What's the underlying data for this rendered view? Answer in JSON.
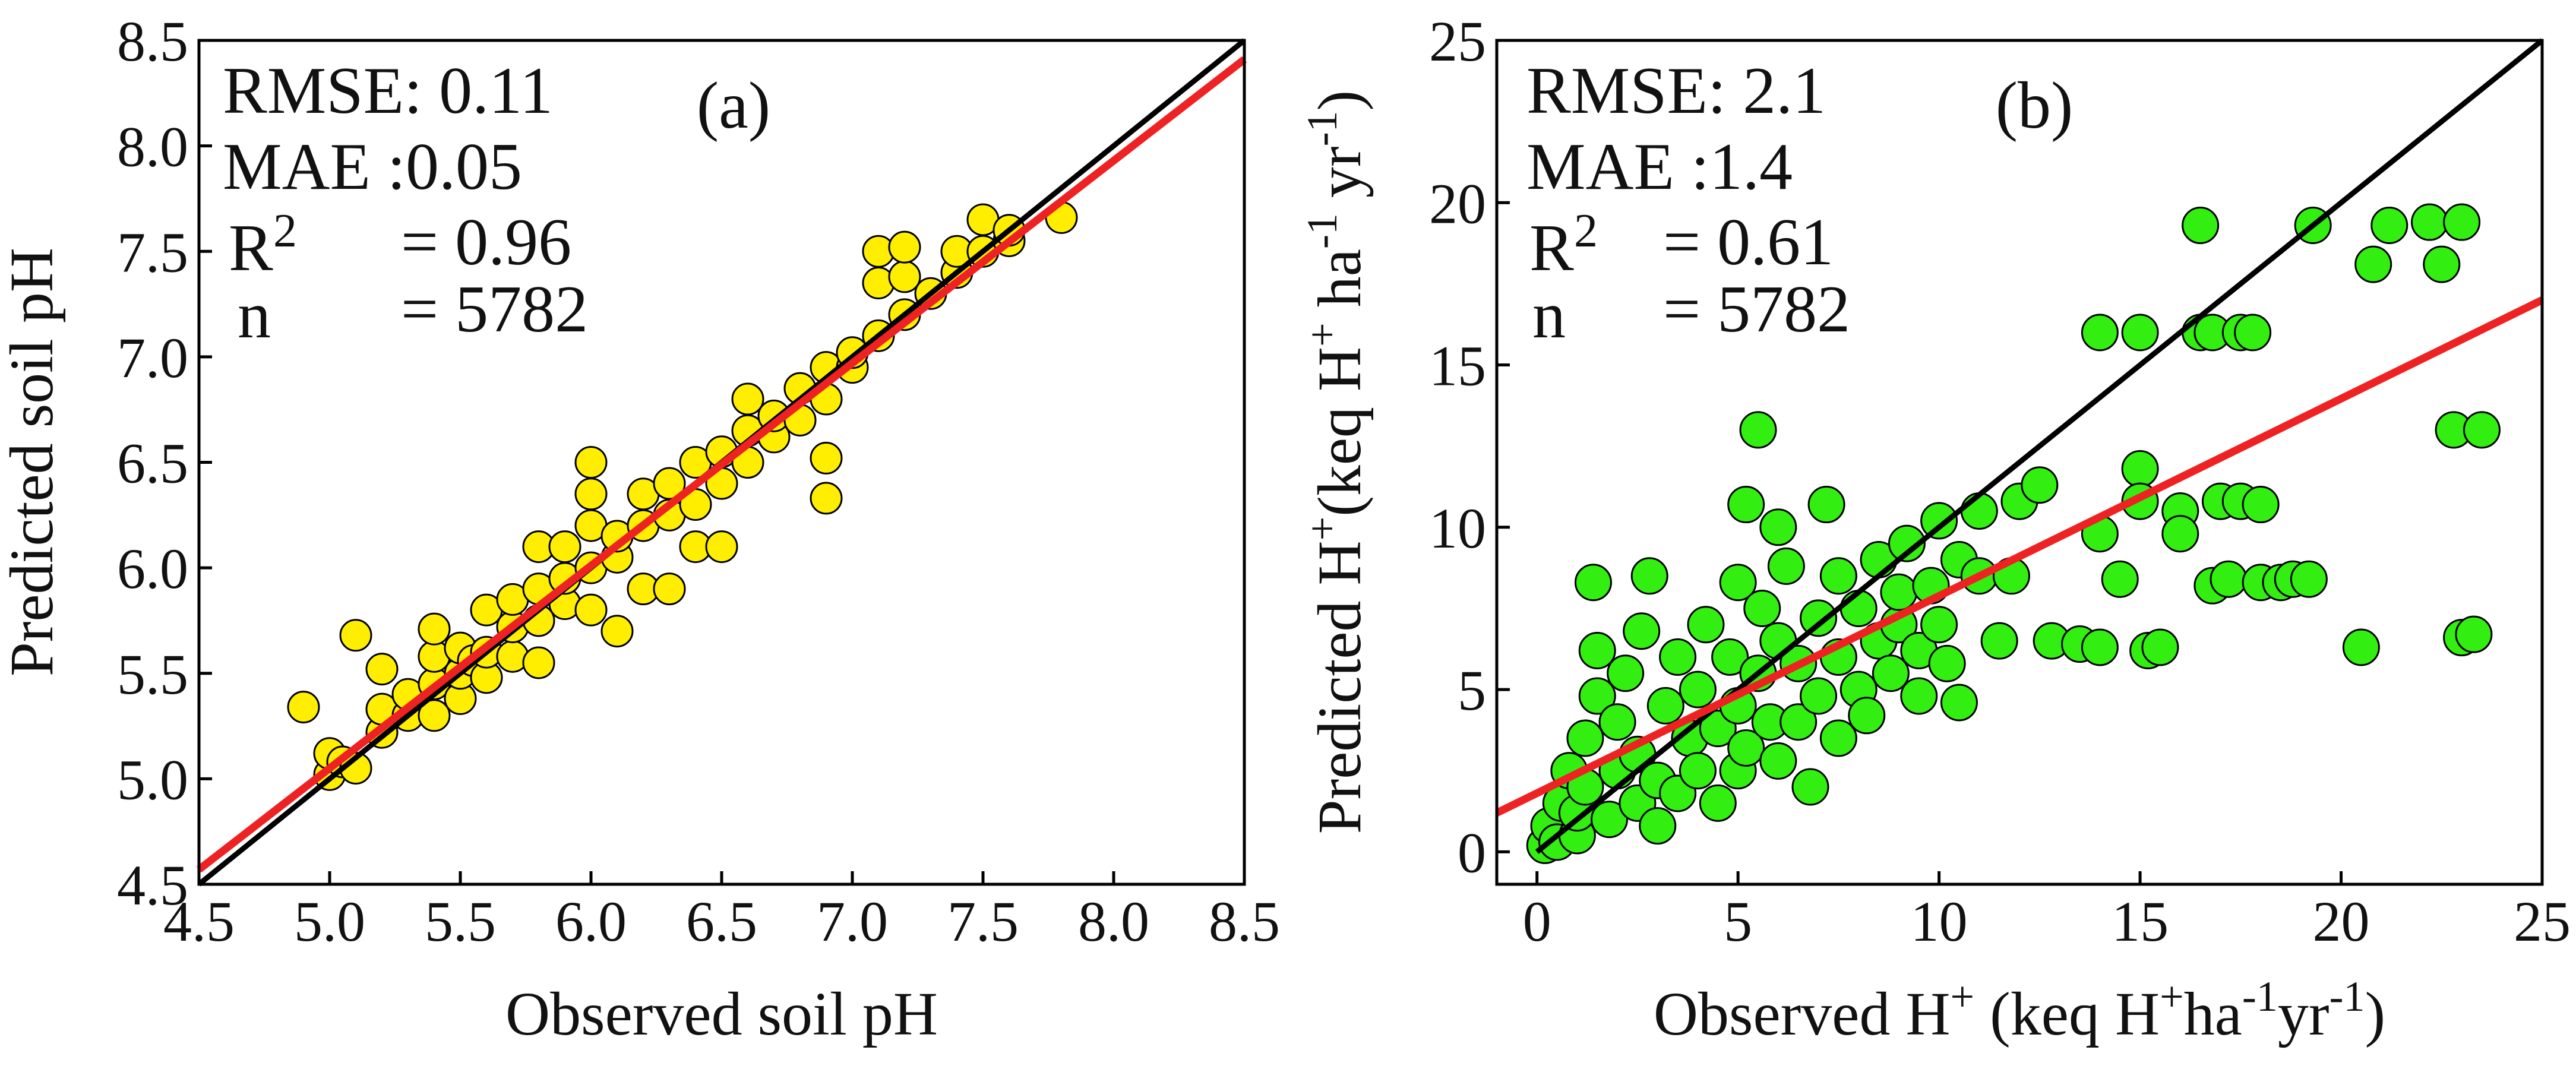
{
  "chart_data": [
    {
      "type": "scatter",
      "panel_label": "(a)",
      "xlabel": "Observed soil pH",
      "ylabel": "Predicted soil pH",
      "xlim": [
        4.5,
        8.5
      ],
      "ylim": [
        4.5,
        8.5
      ],
      "xticks": [
        "4.5",
        "5.0",
        "5.5",
        "6.0",
        "6.5",
        "7.0",
        "7.5",
        "8.0",
        "8.5"
      ],
      "yticks": [
        "4.5",
        "5.0",
        "5.5",
        "6.0",
        "6.5",
        "7.0",
        "7.5",
        "8.0",
        "8.5"
      ],
      "point_color": "#ffee00",
      "stats": {
        "rmse": "RMSE: 0.11",
        "mae": "MAE  :0.05",
        "r2_label": "R",
        "r2_sup": "2",
        "r2_value": "= 0.96",
        "n_label": "n",
        "n_value": "= 5782"
      },
      "identity_line": {
        "color": "#000000",
        "from": [
          4.5,
          4.5
        ],
        "to": [
          8.5,
          8.5
        ]
      },
      "fit_line": {
        "color": "#ee2222",
        "from": [
          4.5,
          4.57
        ],
        "to": [
          8.5,
          8.41
        ]
      },
      "points": [
        [
          4.9,
          5.34
        ],
        [
          5.0,
          5.02
        ],
        [
          5.0,
          5.12
        ],
        [
          5.05,
          5.08
        ],
        [
          5.1,
          5.05
        ],
        [
          5.1,
          5.68
        ],
        [
          5.2,
          5.22
        ],
        [
          5.2,
          5.33
        ],
        [
          5.2,
          5.52
        ],
        [
          5.3,
          5.3
        ],
        [
          5.3,
          5.4
        ],
        [
          5.4,
          5.3
        ],
        [
          5.4,
          5.45
        ],
        [
          5.4,
          5.58
        ],
        [
          5.4,
          5.71
        ],
        [
          5.5,
          5.38
        ],
        [
          5.5,
          5.5
        ],
        [
          5.5,
          5.62
        ],
        [
          5.55,
          5.56
        ],
        [
          5.6,
          5.48
        ],
        [
          5.6,
          5.6
        ],
        [
          5.6,
          5.8
        ],
        [
          5.7,
          5.58
        ],
        [
          5.7,
          5.72
        ],
        [
          5.7,
          5.85
        ],
        [
          5.8,
          5.55
        ],
        [
          5.8,
          5.75
        ],
        [
          5.8,
          5.9
        ],
        [
          5.8,
          6.1
        ],
        [
          5.9,
          5.83
        ],
        [
          5.9,
          5.95
        ],
        [
          5.9,
          6.1
        ],
        [
          6.0,
          5.8
        ],
        [
          6.0,
          6.0
        ],
        [
          6.0,
          6.2
        ],
        [
          6.0,
          6.35
        ],
        [
          6.0,
          6.5
        ],
        [
          6.1,
          5.7
        ],
        [
          6.1,
          6.05
        ],
        [
          6.1,
          6.15
        ],
        [
          6.2,
          5.9
        ],
        [
          6.2,
          6.2
        ],
        [
          6.2,
          6.35
        ],
        [
          6.3,
          5.9
        ],
        [
          6.3,
          6.25
        ],
        [
          6.3,
          6.4
        ],
        [
          6.4,
          6.1
        ],
        [
          6.4,
          6.3
        ],
        [
          6.4,
          6.5
        ],
        [
          6.5,
          6.1
        ],
        [
          6.5,
          6.4
        ],
        [
          6.5,
          6.55
        ],
        [
          6.6,
          6.5
        ],
        [
          6.6,
          6.65
        ],
        [
          6.6,
          6.8
        ],
        [
          6.7,
          6.62
        ],
        [
          6.7,
          6.72
        ],
        [
          6.8,
          6.7
        ],
        [
          6.8,
          6.85
        ],
        [
          6.9,
          6.33
        ],
        [
          6.9,
          6.52
        ],
        [
          6.9,
          6.8
        ],
        [
          6.9,
          6.95
        ],
        [
          7.0,
          6.95
        ],
        [
          7.0,
          7.02
        ],
        [
          7.1,
          7.1
        ],
        [
          7.1,
          7.35
        ],
        [
          7.1,
          7.5
        ],
        [
          7.2,
          7.2
        ],
        [
          7.2,
          7.38
        ],
        [
          7.2,
          7.52
        ],
        [
          7.3,
          7.3
        ],
        [
          7.4,
          7.4
        ],
        [
          7.4,
          7.5
        ],
        [
          7.5,
          7.5
        ],
        [
          7.5,
          7.65
        ],
        [
          7.6,
          7.55
        ],
        [
          7.6,
          7.6
        ],
        [
          7.8,
          7.66
        ]
      ]
    },
    {
      "type": "scatter",
      "panel_label": "(b)",
      "xlabel_parts": [
        "Observed H",
        "+",
        " (keq H",
        "+",
        "ha",
        "-1",
        "yr",
        "-1",
        ")"
      ],
      "ylabel_parts": [
        "Predicted  H",
        "+",
        "(keq H",
        "+",
        " ha",
        "-1",
        " yr",
        "-1",
        ")"
      ],
      "xlim": [
        -1,
        25
      ],
      "ylim": [
        -1,
        25
      ],
      "xticks": [
        "0",
        "5",
        "10",
        "15",
        "20",
        "25"
      ],
      "yticks": [
        "0",
        "5",
        "10",
        "15",
        "20",
        "25"
      ],
      "point_color": "#33ee11",
      "stats": {
        "rmse": "RMSE: 2.1",
        "mae": "MAE  :1.4",
        "r2_label": "R",
        "r2_sup": "2",
        "r2_value": "= 0.61",
        "n_label": "n",
        "n_value": "= 5782"
      },
      "identity_line": {
        "color": "#000000",
        "from": [
          0,
          0
        ],
        "to": [
          25,
          25
        ]
      },
      "fit_line": {
        "color": "#ee2222",
        "from": [
          -1,
          1.2
        ],
        "to": [
          25,
          17.0
        ]
      },
      "points": [
        [
          0.2,
          0.2
        ],
        [
          0.3,
          0.8
        ],
        [
          0.5,
          0.3
        ],
        [
          0.6,
          1.5
        ],
        [
          0.8,
          2.5
        ],
        [
          1.0,
          0.5
        ],
        [
          1.0,
          1.2
        ],
        [
          1.2,
          2.0
        ],
        [
          1.2,
          3.5
        ],
        [
          1.5,
          4.8
        ],
        [
          1.5,
          6.2
        ],
        [
          1.4,
          8.3
        ],
        [
          1.8,
          1.0
        ],
        [
          2.0,
          2.5
        ],
        [
          2.0,
          4.0
        ],
        [
          2.2,
          5.5
        ],
        [
          2.5,
          1.5
        ],
        [
          2.5,
          3.0
        ],
        [
          2.6,
          6.8
        ],
        [
          2.8,
          8.5
        ],
        [
          3.0,
          0.8
        ],
        [
          3.0,
          2.2
        ],
        [
          3.2,
          4.5
        ],
        [
          3.5,
          1.8
        ],
        [
          3.5,
          6.0
        ],
        [
          3.8,
          3.5
        ],
        [
          4.0,
          2.5
        ],
        [
          4.0,
          5.0
        ],
        [
          4.2,
          7.0
        ],
        [
          4.5,
          1.5
        ],
        [
          4.5,
          3.8
        ],
        [
          4.8,
          6.0
        ],
        [
          5.0,
          2.5
        ],
        [
          5.0,
          4.5
        ],
        [
          5.0,
          8.3
        ],
        [
          5.2,
          3.2
        ],
        [
          5.2,
          10.7
        ],
        [
          5.5,
          13.0
        ],
        [
          5.5,
          5.5
        ],
        [
          5.6,
          7.5
        ],
        [
          5.8,
          4.0
        ],
        [
          6.0,
          2.8
        ],
        [
          6.0,
          6.5
        ],
        [
          6.0,
          10.0
        ],
        [
          6.2,
          8.8
        ],
        [
          6.5,
          4.0
        ],
        [
          6.5,
          5.8
        ],
        [
          6.8,
          2.0
        ],
        [
          7.0,
          7.2
        ],
        [
          7.0,
          4.8
        ],
        [
          7.2,
          10.7
        ],
        [
          7.5,
          3.5
        ],
        [
          7.5,
          6.0
        ],
        [
          7.5,
          8.5
        ],
        [
          8.0,
          5.0
        ],
        [
          8.0,
          7.5
        ],
        [
          8.2,
          4.2
        ],
        [
          8.5,
          6.5
        ],
        [
          8.5,
          9.0
        ],
        [
          8.8,
          5.5
        ],
        [
          9.0,
          7.0
        ],
        [
          9.0,
          8.0
        ],
        [
          9.2,
          9.5
        ],
        [
          9.5,
          6.2
        ],
        [
          9.5,
          4.8
        ],
        [
          9.8,
          8.2
        ],
        [
          10.0,
          10.2
        ],
        [
          10.0,
          7.0
        ],
        [
          10.2,
          5.8
        ],
        [
          10.5,
          9.0
        ],
        [
          10.5,
          4.6
        ],
        [
          11.0,
          8.5
        ],
        [
          11.0,
          10.5
        ],
        [
          11.5,
          6.5
        ],
        [
          11.8,
          8.5
        ],
        [
          12.0,
          10.8
        ],
        [
          12.5,
          11.3
        ],
        [
          12.8,
          6.5
        ],
        [
          13.5,
          6.4
        ],
        [
          14.0,
          6.3
        ],
        [
          14.0,
          9.8
        ],
        [
          14.0,
          16.0
        ],
        [
          14.5,
          8.4
        ],
        [
          15.0,
          11.8
        ],
        [
          15.0,
          16.0
        ],
        [
          15.2,
          6.2
        ],
        [
          15.5,
          6.3
        ],
        [
          15.0,
          10.8
        ],
        [
          16.0,
          10.5
        ],
        [
          16.0,
          9.8
        ],
        [
          16.5,
          16.0
        ],
        [
          16.5,
          19.3
        ],
        [
          16.8,
          16.0
        ],
        [
          16.8,
          8.2
        ],
        [
          17.0,
          10.8
        ],
        [
          17.2,
          8.4
        ],
        [
          17.5,
          16.0
        ],
        [
          17.8,
          16.0
        ],
        [
          17.5,
          10.8
        ],
        [
          18.0,
          10.7
        ],
        [
          18.0,
          8.3
        ],
        [
          18.5,
          8.3
        ],
        [
          18.8,
          8.4
        ],
        [
          19.2,
          8.4
        ],
        [
          19.3,
          19.3
        ],
        [
          20.5,
          6.3
        ],
        [
          20.8,
          18.1
        ],
        [
          21.2,
          19.3
        ],
        [
          22.2,
          19.4
        ],
        [
          22.5,
          18.1
        ],
        [
          22.8,
          13.0
        ],
        [
          23.0,
          19.4
        ],
        [
          23.0,
          6.6
        ],
        [
          23.3,
          6.7
        ],
        [
          23.5,
          13.0
        ]
      ]
    }
  ]
}
